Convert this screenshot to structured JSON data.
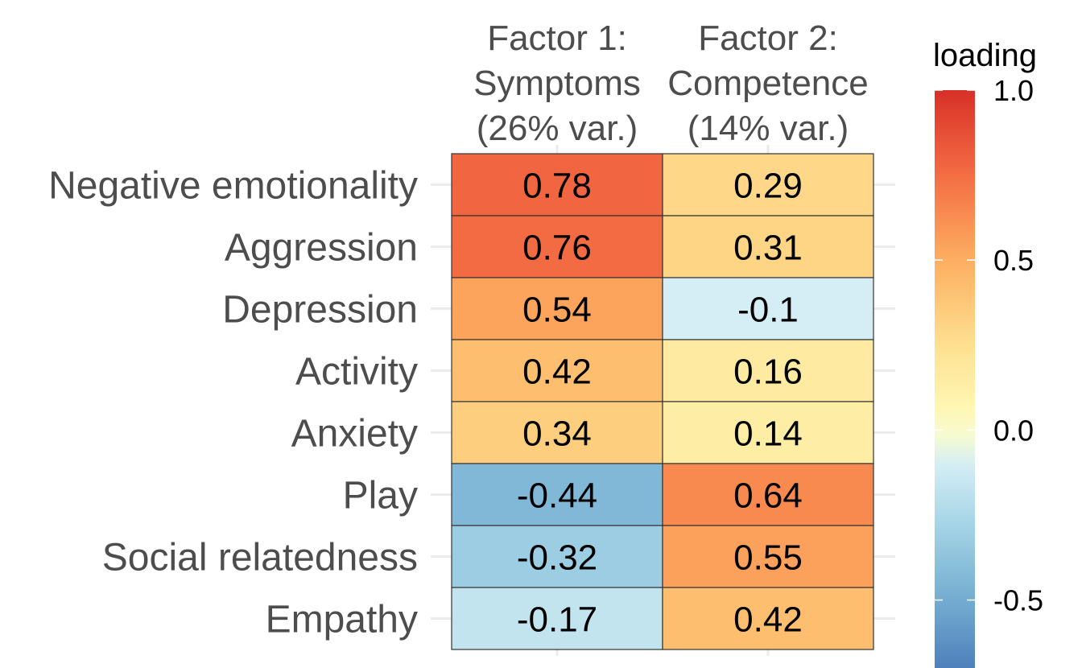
{
  "chart_data": {
    "type": "heatmap",
    "columns": [
      [
        "Factor 1:",
        "Symptoms",
        "(26% var.)"
      ],
      [
        "Factor 2:",
        "Competence",
        "(14% var.)"
      ]
    ],
    "rows": [
      "Negative emotionality",
      "Aggression",
      "Depression",
      "Activity",
      "Anxiety",
      "Play",
      "Social relatedness",
      "Empathy"
    ],
    "values": [
      [
        0.78,
        0.29
      ],
      [
        0.76,
        0.31
      ],
      [
        0.54,
        -0.1
      ],
      [
        0.42,
        0.16
      ],
      [
        0.34,
        0.14
      ],
      [
        -0.44,
        0.64
      ],
      [
        -0.32,
        0.55
      ],
      [
        -0.17,
        0.42
      ]
    ],
    "cell_labels": [
      [
        "0.78",
        "0.29"
      ],
      [
        "0.76",
        "0.31"
      ],
      [
        "0.54",
        "-0.1"
      ],
      [
        "0.42",
        "0.16"
      ],
      [
        "0.34",
        "0.14"
      ],
      [
        "-0.44",
        "0.64"
      ],
      [
        "-0.32",
        "0.55"
      ],
      [
        "-0.17",
        "0.42"
      ]
    ],
    "legend": {
      "title": "loading",
      "ticks": [
        1.0,
        0.5,
        0.0,
        -0.5
      ],
      "tick_labels": [
        "1.0",
        "0.5",
        "0.0",
        "-0.5"
      ],
      "range": [
        -0.7,
        1.0
      ],
      "palette": "RdYlBu (reversed)",
      "placement": "right"
    },
    "colors": {
      "cell_border": "#333333",
      "grid": "#ebebeb",
      "label_text": "#4d4d4d"
    }
  }
}
